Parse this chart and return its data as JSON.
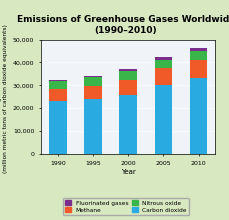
{
  "title_line1": "Emissions of Greenhouse Gases Worldwide",
  "title_line2": "(1990–2010)",
  "xlabel": "Year",
  "ylabel": "Greenhouse gas emissions\n(million metric tons of carbon dioxide equivalents)",
  "years": [
    1990,
    1995,
    2000,
    2005,
    2010
  ],
  "year_labels": [
    "1990",
    "1995",
    "2000",
    "2005",
    "2010"
  ],
  "carbon_dioxide": [
    23000,
    24000,
    26000,
    30000,
    33000
  ],
  "methane": [
    5500,
    5800,
    6500,
    7500,
    8000
  ],
  "nitrous_oxide": [
    3500,
    3800,
    3800,
    3800,
    4200
  ],
  "fluorinated": [
    400,
    500,
    700,
    900,
    1000
  ],
  "colors": {
    "carbon_dioxide": "#29ABE2",
    "methane": "#F05A28",
    "nitrous_oxide": "#39B54A",
    "fluorinated": "#7B2D8B"
  },
  "legend_labels": {
    "fluorinated": "Fluorinated gases",
    "methane": "Methane",
    "nitrous_oxide": "Nitrous oxide",
    "carbon_dioxide": "Carbon dioxide"
  },
  "ylim": [
    0,
    50000
  ],
  "yticks": [
    0,
    10000,
    20000,
    30000,
    40000,
    50000
  ],
  "ytick_labels": [
    "0",
    "10,000",
    "20,000",
    "30,000",
    "40,000",
    "50,000"
  ],
  "background_color": "#d8e8c0",
  "plot_background": "#f0f4f8",
  "title_fontsize": 6.5,
  "axis_label_fontsize": 5.0,
  "ylabel_fontsize": 4.2,
  "tick_fontsize": 4.5,
  "legend_fontsize": 4.2
}
